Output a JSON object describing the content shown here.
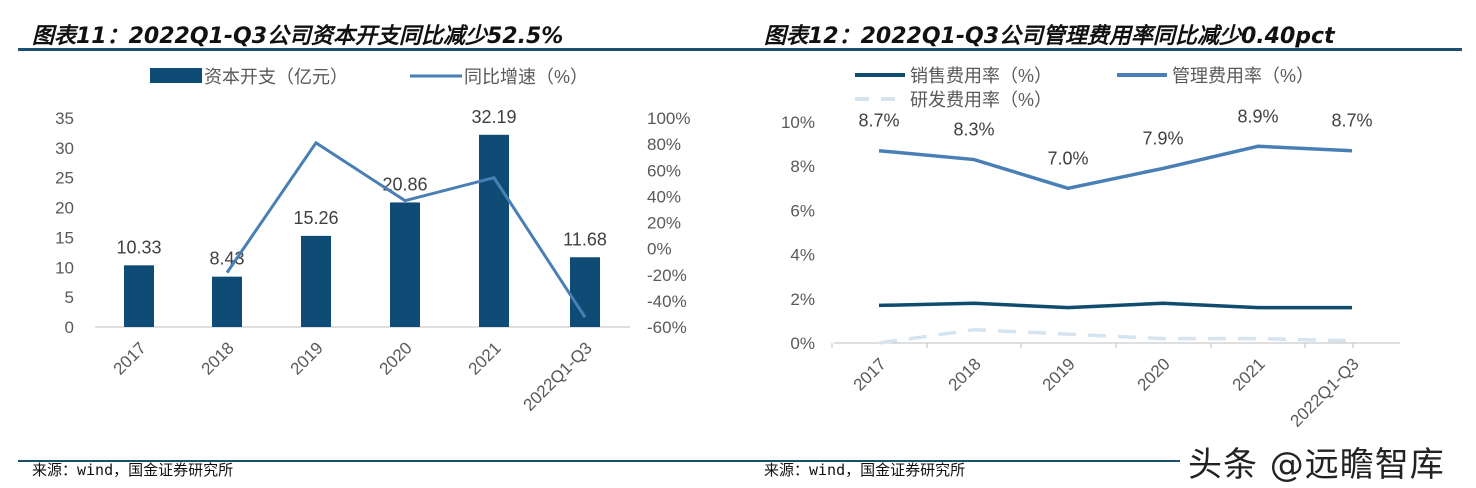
{
  "chart_data": [
    {
      "type": "bar+line",
      "title": "图表11：2022Q1-Q3公司资本开支同比减少52.5%",
      "categories": [
        "2017",
        "2018",
        "2019",
        "2020",
        "2021",
        "2022Q1-Q3"
      ],
      "series": [
        {
          "name": "资本开支（亿元）",
          "type": "bar",
          "axis": "left",
          "values": [
            10.33,
            8.43,
            15.26,
            20.86,
            32.19,
            11.68
          ],
          "color": "#0f4c75"
        },
        {
          "name": "同比增速（%）",
          "type": "line",
          "axis": "right",
          "values": [
            null,
            -18.4,
            81.0,
            36.7,
            54.3,
            -52.5
          ],
          "color": "#4a7fb5"
        }
      ],
      "left_ticks": [
        "0",
        "5",
        "10",
        "15",
        "20",
        "25",
        "30",
        "35"
      ],
      "ylim": [
        0,
        35
      ],
      "right_ticks": [
        "-60%",
        "-40%",
        "-20%",
        "0%",
        "20%",
        "40%",
        "60%",
        "80%",
        "100%"
      ],
      "y2lim": [
        -60,
        100
      ],
      "legend": "top",
      "source": "来源：wind，国金证券研究所"
    },
    {
      "type": "line",
      "title": "图表12：2022Q1-Q3公司管理费用率同比减少0.40pct",
      "categories": [
        "2017",
        "2018",
        "2019",
        "2020",
        "2021",
        "2022Q1-Q3"
      ],
      "series": [
        {
          "name": "销售费用率（%）",
          "values": [
            1.7,
            1.8,
            1.6,
            1.8,
            1.6,
            1.6
          ],
          "color": "#0f4c6e",
          "dash": false,
          "labels": false
        },
        {
          "name": "管理费用率（%）",
          "values": [
            8.7,
            8.3,
            7.0,
            7.9,
            8.9,
            8.7
          ],
          "color": "#4a7fb5",
          "dash": false,
          "labels": true,
          "data_labels": [
            "8.7%",
            "8.3%",
            "7.0%",
            "7.9%",
            "8.9%",
            "8.7%"
          ]
        },
        {
          "name": "研发费用率（%）",
          "values": [
            0.0,
            0.6,
            0.4,
            0.2,
            0.2,
            0.1
          ],
          "color": "#d6e4f0",
          "dash": true,
          "labels": false
        }
      ],
      "y_ticks": [
        "0%",
        "2%",
        "4%",
        "6%",
        "8%",
        "10%"
      ],
      "ylim": [
        0,
        10
      ],
      "legend": "top",
      "source": "来源：wind，国金证券研究所"
    }
  ],
  "watermark": "头条 @远瞻智库"
}
